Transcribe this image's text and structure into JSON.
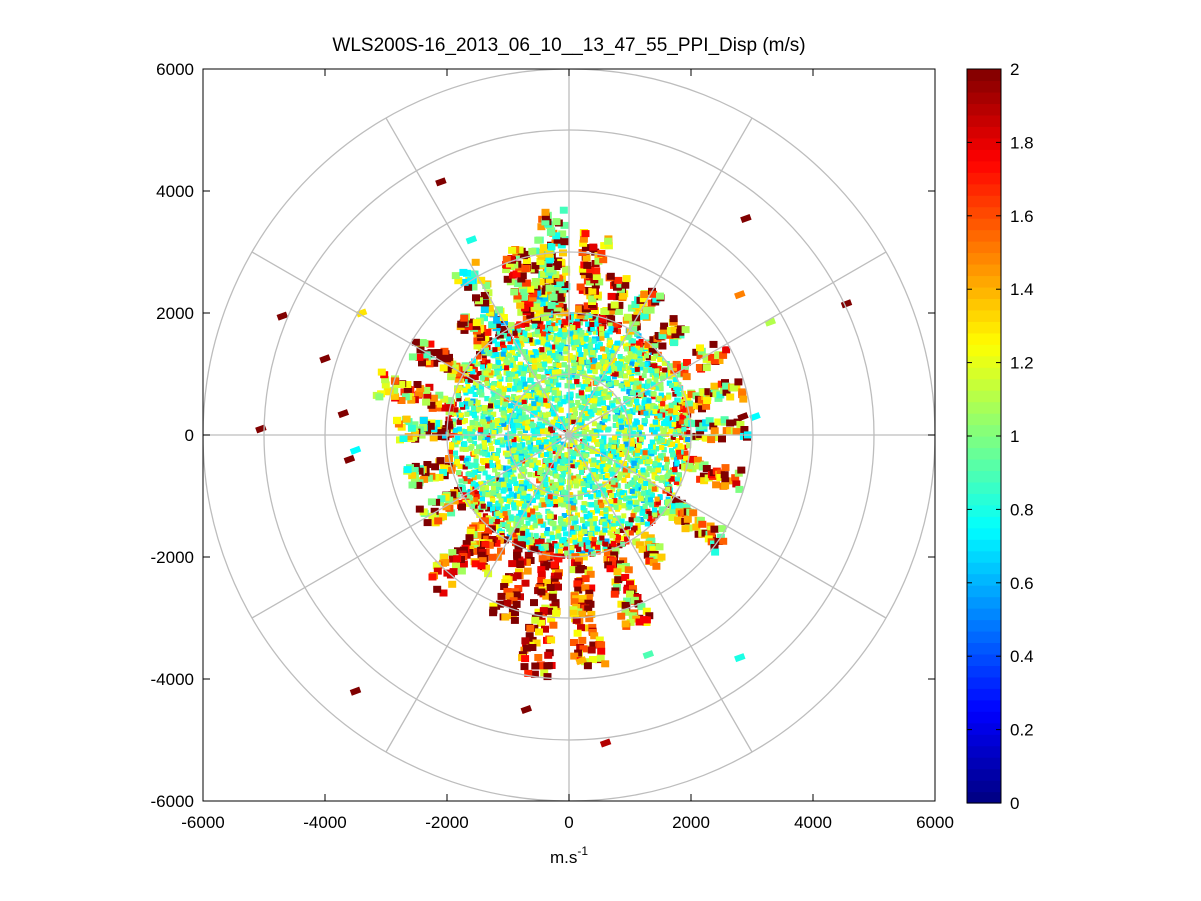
{
  "chart_data": {
    "type": "polar-scatter",
    "title": "WLS200S-16_2013_06_10__13_47_55_PPI_Disp (m/s)",
    "xlabel_base": "m.s",
    "xlabel_sup": "-1",
    "ylabel": "",
    "xlim": [
      -6000,
      6000
    ],
    "ylim": [
      -6000,
      6000
    ],
    "x_ticks": [
      -6000,
      -4000,
      -2000,
      0,
      2000,
      4000,
      6000
    ],
    "y_ticks": [
      6000,
      4000,
      2000,
      0,
      -2000,
      -4000,
      -6000
    ],
    "polar_grid": {
      "ring_radii": [
        1000,
        2000,
        3000,
        4000,
        5000,
        6000
      ],
      "spoke_angles_deg": [
        0,
        30,
        60,
        90,
        120,
        150,
        180,
        210,
        240,
        270,
        300,
        330
      ]
    },
    "colorbar": {
      "colormap": "jet",
      "range": [
        0,
        2
      ],
      "ticks": [
        0,
        0.2,
        0.4,
        0.6,
        0.8,
        1,
        1.2,
        1.4,
        1.6,
        1.8,
        2
      ]
    },
    "dense_region": {
      "radius": 2000,
      "typical_value_range": [
        0.7,
        1.3
      ]
    },
    "outlier_points": [
      {
        "x": -2100,
        "y": 4150,
        "v": 2.0
      },
      {
        "x": 2900,
        "y": 3550,
        "v": 2.0
      },
      {
        "x": -4700,
        "y": 1950,
        "v": 2.0
      },
      {
        "x": -4000,
        "y": 1250,
        "v": 2.0
      },
      {
        "x": -5050,
        "y": 100,
        "v": 2.0
      },
      {
        "x": 4550,
        "y": 2150,
        "v": 2.0
      },
      {
        "x": -3500,
        "y": -4200,
        "v": 2.0
      },
      {
        "x": -700,
        "y": -4500,
        "v": 2.0
      },
      {
        "x": 600,
        "y": -5050,
        "v": 1.9
      },
      {
        "x": 2800,
        "y": -3650,
        "v": 0.8
      },
      {
        "x": 2800,
        "y": 2300,
        "v": 1.5
      },
      {
        "x": 3050,
        "y": 300,
        "v": 0.75
      },
      {
        "x": 2850,
        "y": 300,
        "v": 2.0
      },
      {
        "x": 3300,
        "y": 1850,
        "v": 1.1
      },
      {
        "x": -3700,
        "y": 350,
        "v": 2.0
      },
      {
        "x": -3500,
        "y": -250,
        "v": 0.75
      },
      {
        "x": -3600,
        "y": -400,
        "v": 2.0
      },
      {
        "x": -3400,
        "y": 2000,
        "v": 1.3
      },
      {
        "x": -1600,
        "y": 3200,
        "v": 0.8
      },
      {
        "x": 200,
        "y": -3700,
        "v": 1.4
      },
      {
        "x": 1300,
        "y": -3600,
        "v": 0.9
      }
    ],
    "spoke_arms": [
      {
        "angle": 95,
        "r_start": 2000,
        "r_end": 3650,
        "mean": 1.2
      },
      {
        "angle": 82,
        "r_start": 2000,
        "r_end": 3300,
        "mean": 1.5
      },
      {
        "angle": 100,
        "r_start": 2000,
        "r_end": 3100,
        "mean": 1.0
      },
      {
        "angle": 108,
        "r_start": 2000,
        "r_end": 3150,
        "mean": 1.4
      },
      {
        "angle": 122,
        "r_start": 2000,
        "r_end": 3200,
        "mean": 1.0
      },
      {
        "angle": 132,
        "r_start": 2000,
        "r_end": 2600,
        "mean": 1.3
      },
      {
        "angle": 150,
        "r_start": 2000,
        "r_end": 2900,
        "mean": 1.3
      },
      {
        "angle": 165,
        "r_start": 2000,
        "r_end": 3200,
        "mean": 1.4
      },
      {
        "angle": 178,
        "r_start": 2000,
        "r_end": 2800,
        "mean": 1.1
      },
      {
        "angle": 195,
        "r_start": 2000,
        "r_end": 2700,
        "mean": 1.2
      },
      {
        "angle": 210,
        "r_start": 2000,
        "r_end": 2700,
        "mean": 1.3
      },
      {
        "angle": 228,
        "r_start": 2000,
        "r_end": 3300,
        "mean": 1.5
      },
      {
        "angle": 236,
        "r_start": 2000,
        "r_end": 2600,
        "mean": 1.6
      },
      {
        "angle": 250,
        "r_start": 2000,
        "r_end": 3200,
        "mean": 1.7
      },
      {
        "angle": 262,
        "r_start": 2000,
        "r_end": 3950,
        "mean": 1.6
      },
      {
        "angle": 275,
        "r_start": 2000,
        "r_end": 3800,
        "mean": 1.5
      },
      {
        "angle": 290,
        "r_start": 2000,
        "r_end": 3300,
        "mean": 1.4
      },
      {
        "angle": 305,
        "r_start": 2000,
        "r_end": 2600,
        "mean": 1.3
      },
      {
        "angle": 325,
        "r_start": 2000,
        "r_end": 3100,
        "mean": 1.2
      },
      {
        "angle": 345,
        "r_start": 2000,
        "r_end": 2900,
        "mean": 1.4
      },
      {
        "angle": 2,
        "r_start": 2000,
        "r_end": 2900,
        "mean": 1.1
      },
      {
        "angle": 15,
        "r_start": 2000,
        "r_end": 2900,
        "mean": 1.3
      },
      {
        "angle": 30,
        "r_start": 2000,
        "r_end": 2900,
        "mean": 1.4
      },
      {
        "angle": 45,
        "r_start": 2000,
        "r_end": 2600,
        "mean": 1.2
      },
      {
        "angle": 60,
        "r_start": 2000,
        "r_end": 2700,
        "mean": 1.2
      },
      {
        "angle": 72,
        "r_start": 2000,
        "r_end": 2700,
        "mean": 1.4
      }
    ]
  }
}
